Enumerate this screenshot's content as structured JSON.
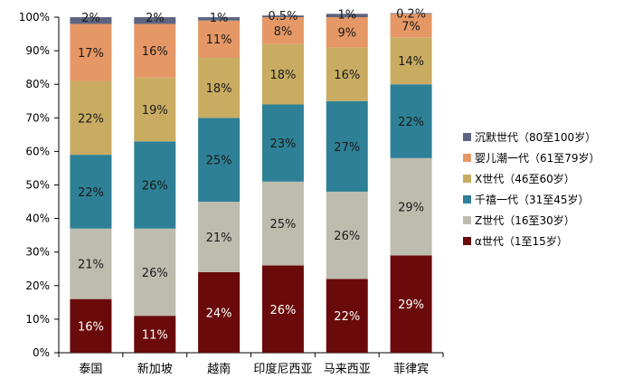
{
  "chart_data": {
    "type": "bar",
    "stacked": true,
    "categories": [
      "泰国",
      "新加坡",
      "越南",
      "印度尼西亚",
      "马来西亚",
      "菲律宾"
    ],
    "series": [
      {
        "name": "α世代（1至15岁）",
        "color": "#6b0a0a",
        "values": [
          16,
          11,
          24,
          26,
          22,
          29
        ],
        "labels": [
          "16%",
          "11%",
          "24%",
          "26%",
          "22%",
          "29%"
        ],
        "label_color": "#ffffff"
      },
      {
        "name": "Z世代（16至30岁）",
        "color": "#bebcae",
        "values": [
          21,
          26,
          21,
          25,
          26,
          29
        ],
        "labels": [
          "21%",
          "26%",
          "21%",
          "25%",
          "26%",
          "29%"
        ],
        "label_color": "#1a1a1a"
      },
      {
        "name": "千禧一代（31至45岁）",
        "color": "#2e8096",
        "values": [
          22,
          26,
          25,
          23,
          27,
          22
        ],
        "labels": [
          "22%",
          "26%",
          "25%",
          "23%",
          "27%",
          "22%"
        ],
        "label_color": "#1a1a1a"
      },
      {
        "name": "X世代（46至60岁）",
        "color": "#c9ac62",
        "values": [
          22,
          19,
          18,
          18,
          16,
          14
        ],
        "labels": [
          "22%",
          "19%",
          "18%",
          "18%",
          "16%",
          "14%"
        ],
        "label_color": "#1a1a1a"
      },
      {
        "name": "婴儿潮一代（61至79岁）",
        "color": "#e59866",
        "values": [
          17,
          16,
          11,
          8,
          9,
          7
        ],
        "labels": [
          "17%",
          "16%",
          "11%",
          "8%",
          "9%",
          "7%"
        ],
        "label_color": "#1a1a1a"
      },
      {
        "name": "沉默世代（80至100岁）",
        "color": "#5d6480",
        "values": [
          2,
          2,
          1,
          0.5,
          1,
          0.2
        ],
        "labels": [
          "2%",
          "2%",
          "1%",
          "0.5%",
          "1%",
          "0.2%"
        ],
        "label_color": "#1a1a1a"
      }
    ],
    "yticks": [
      "0%",
      "10%",
      "20%",
      "30%",
      "40%",
      "50%",
      "60%",
      "70%",
      "80%",
      "90%",
      "100%"
    ],
    "ylim": [
      0,
      100
    ],
    "legend_position": "right",
    "legend_order": [
      5,
      4,
      3,
      2,
      1,
      0
    ],
    "grid": false
  }
}
